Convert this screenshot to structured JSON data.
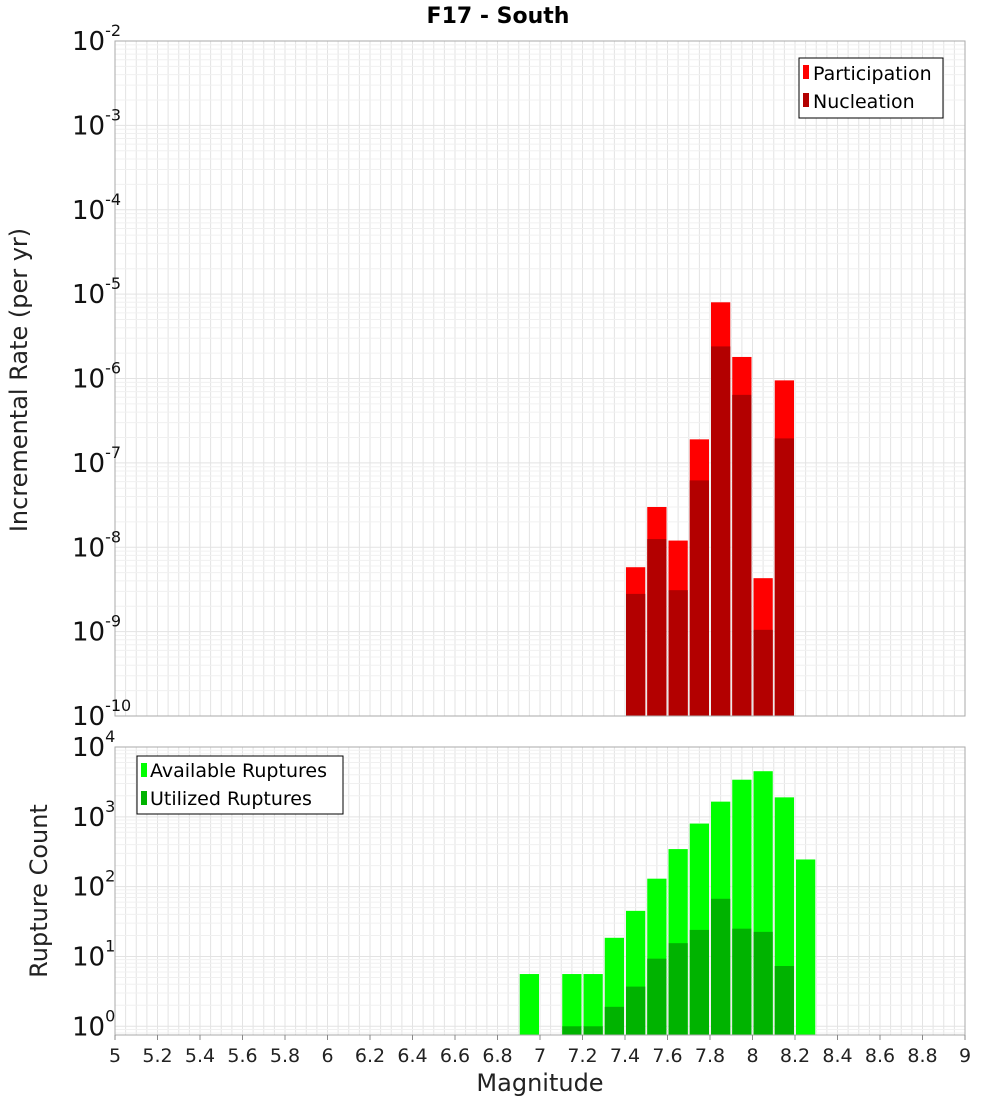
{
  "chart_data": [
    {
      "type": "bar",
      "title": "F17 - South",
      "xlabel": "",
      "ylabel": "Incremental Rate (per yr)",
      "xlim": [
        5,
        9
      ],
      "ylim": [
        1e-10,
        0.01
      ],
      "yscale": "log",
      "grid": true,
      "legend_position": "top-right",
      "bar_width": 0.1,
      "y_tick_exponents": [
        "-10",
        "-9",
        "-8",
        "-7",
        "-6",
        "-5",
        "-4",
        "-3",
        "-2"
      ],
      "series": [
        {
          "name": "Participation",
          "color": "#ff0000",
          "x": [
            7.45,
            7.55,
            7.65,
            7.75,
            7.85,
            7.95,
            8.05,
            8.15
          ],
          "values": [
            5.8e-09,
            3e-08,
            1.2e-08,
            1.9e-07,
            8e-06,
            1.8e-06,
            4.3e-09,
            9.5e-07
          ]
        },
        {
          "name": "Nucleation",
          "color": "#b30000",
          "x": [
            7.45,
            7.55,
            7.65,
            7.75,
            7.85,
            7.95,
            8.05,
            8.15
          ],
          "values": [
            2.8e-09,
            1.25e-08,
            3.1e-09,
            6.2e-08,
            2.4e-06,
            6.4e-07,
            1.05e-09,
            1.95e-07
          ]
        }
      ]
    },
    {
      "type": "bar",
      "title": "",
      "xlabel": "Magnitude",
      "ylabel": "Rupture Count",
      "xlim": [
        5,
        9
      ],
      "ylim": [
        0.75,
        10000
      ],
      "yscale": "log",
      "grid": true,
      "legend_position": "top-left",
      "bar_width": 0.1,
      "x_ticks": [
        "5",
        "5.2",
        "5.4",
        "5.6",
        "5.8",
        "6",
        "6.2",
        "6.4",
        "6.6",
        "6.8",
        "7",
        "7.2",
        "7.4",
        "7.6",
        "7.8",
        "8",
        "8.2",
        "8.4",
        "8.6",
        "8.8",
        "9"
      ],
      "y_tick_exponents": [
        "0",
        "1",
        "2",
        "3",
        "4"
      ],
      "series": [
        {
          "name": "Available Ruptures",
          "color": "#00ff00",
          "x": [
            6.95,
            7.15,
            7.25,
            7.35,
            7.45,
            7.55,
            7.65,
            7.75,
            7.85,
            7.95,
            8.05,
            8.15,
            8.25
          ],
          "values": [
            5.6,
            5.6,
            5.6,
            18.5,
            45,
            130,
            345,
            800,
            1650,
            3400,
            4500,
            1900,
            245
          ]
        },
        {
          "name": "Utilized Ruptures",
          "color": "#00b300",
          "x": [
            7.15,
            7.25,
            7.35,
            7.45,
            7.55,
            7.65,
            7.75,
            7.85,
            7.95,
            8.05,
            8.15
          ],
          "values": [
            1,
            1,
            1.9,
            3.7,
            9.3,
            15.5,
            24,
            67,
            25,
            22.5,
            7.3
          ]
        }
      ]
    }
  ]
}
